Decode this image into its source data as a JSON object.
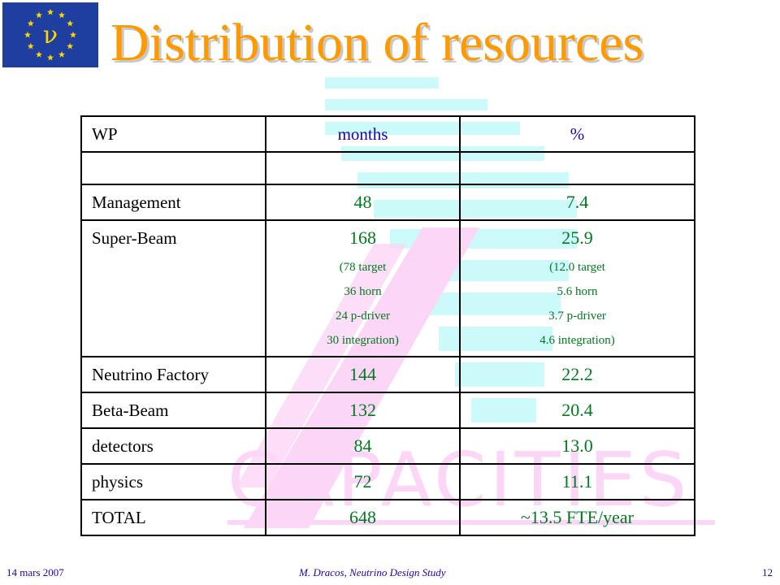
{
  "slide": {
    "title": "Distribution of resources",
    "logo_symbol": "ν",
    "watermark_text": "CAPACITIES"
  },
  "table": {
    "headers": {
      "wp": "WP",
      "months": "months",
      "percent": "%"
    },
    "rows": [
      {
        "wp": "Management",
        "months": "48",
        "percent": "7.4"
      },
      {
        "wp": "Super-Beam",
        "months": "168",
        "percent": "25.9",
        "months_detail": [
          "(78 target",
          "36 horn",
          "24 p-driver",
          "30 integration)"
        ],
        "percent_detail": [
          "(12.0 target",
          "5.6 horn",
          "3.7 p-driver",
          "4.6 integration)"
        ]
      },
      {
        "wp": "Neutrino Factory",
        "months": "144",
        "percent": "22.2"
      },
      {
        "wp": "Beta-Beam",
        "months": "132",
        "percent": "20.4"
      },
      {
        "wp": "detectors",
        "months": "84",
        "percent": "13.0"
      },
      {
        "wp": "physics",
        "months": "72",
        "percent": "11.1"
      },
      {
        "wp": "TOTAL",
        "months": "648",
        "percent": "~13.5 FTE/year"
      }
    ]
  },
  "footer": {
    "date": "14 mars 2007",
    "author": "M. Dracos, Neutrino Design Study",
    "page": "12"
  },
  "colors": {
    "title": "#ff9900",
    "logo_bg": "#1f3fa0",
    "star": "#ffd400",
    "data_text": "#007a1f",
    "header_text": "#2200aa",
    "watermark_cyan": "#ccfafa",
    "watermark_pink": "#fbd6f6"
  }
}
